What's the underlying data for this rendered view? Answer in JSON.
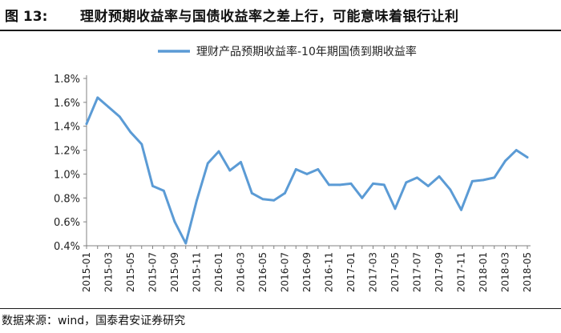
{
  "header": {
    "figure_number": "图 13:",
    "title": "理财预期收益率与国债收益率之差上行，可能意味着银行让利"
  },
  "source": "数据来源：wind，国泰君安证券研究",
  "colors": {
    "series": "#5b9bd5",
    "axis": "#808080",
    "text": "#222222"
  },
  "chart_data": {
    "type": "line",
    "title": "",
    "xlabel": "",
    "ylabel": "",
    "ylim": [
      0.4,
      1.8
    ],
    "yticks": [
      "0.4%",
      "0.6%",
      "0.8%",
      "1.0%",
      "1.2%",
      "1.4%",
      "1.6%",
      "1.8%"
    ],
    "ytick_values": [
      0.4,
      0.6,
      0.8,
      1.0,
      1.2,
      1.4,
      1.6,
      1.8
    ],
    "grid": false,
    "legend": "top",
    "x_tick_labels": [
      "2015-01",
      "2015-03",
      "2015-05",
      "2015-07",
      "2015-09",
      "2015-11",
      "2016-01",
      "2016-03",
      "2016-05",
      "2016-07",
      "2016-09",
      "2016-11",
      "2017-01",
      "2017-03",
      "2017-05",
      "2017-07",
      "2017-09",
      "2017-11",
      "2018-01",
      "2018-03",
      "2018-05"
    ],
    "series": [
      {
        "name": "理财产品预期收益率-10年期国债到期收益率",
        "values": [
          1.42,
          1.64,
          1.56,
          1.48,
          1.35,
          1.25,
          0.9,
          0.86,
          0.6,
          0.42,
          0.78,
          1.09,
          1.19,
          1.03,
          1.1,
          0.84,
          0.79,
          0.78,
          0.84,
          1.04,
          1.0,
          1.04,
          0.91,
          0.91,
          0.92,
          0.8,
          0.92,
          0.91,
          0.71,
          0.93,
          0.97,
          0.9,
          0.98,
          0.87,
          0.7,
          0.94,
          0.95,
          0.97,
          1.11,
          1.2,
          1.14
        ]
      }
    ]
  }
}
